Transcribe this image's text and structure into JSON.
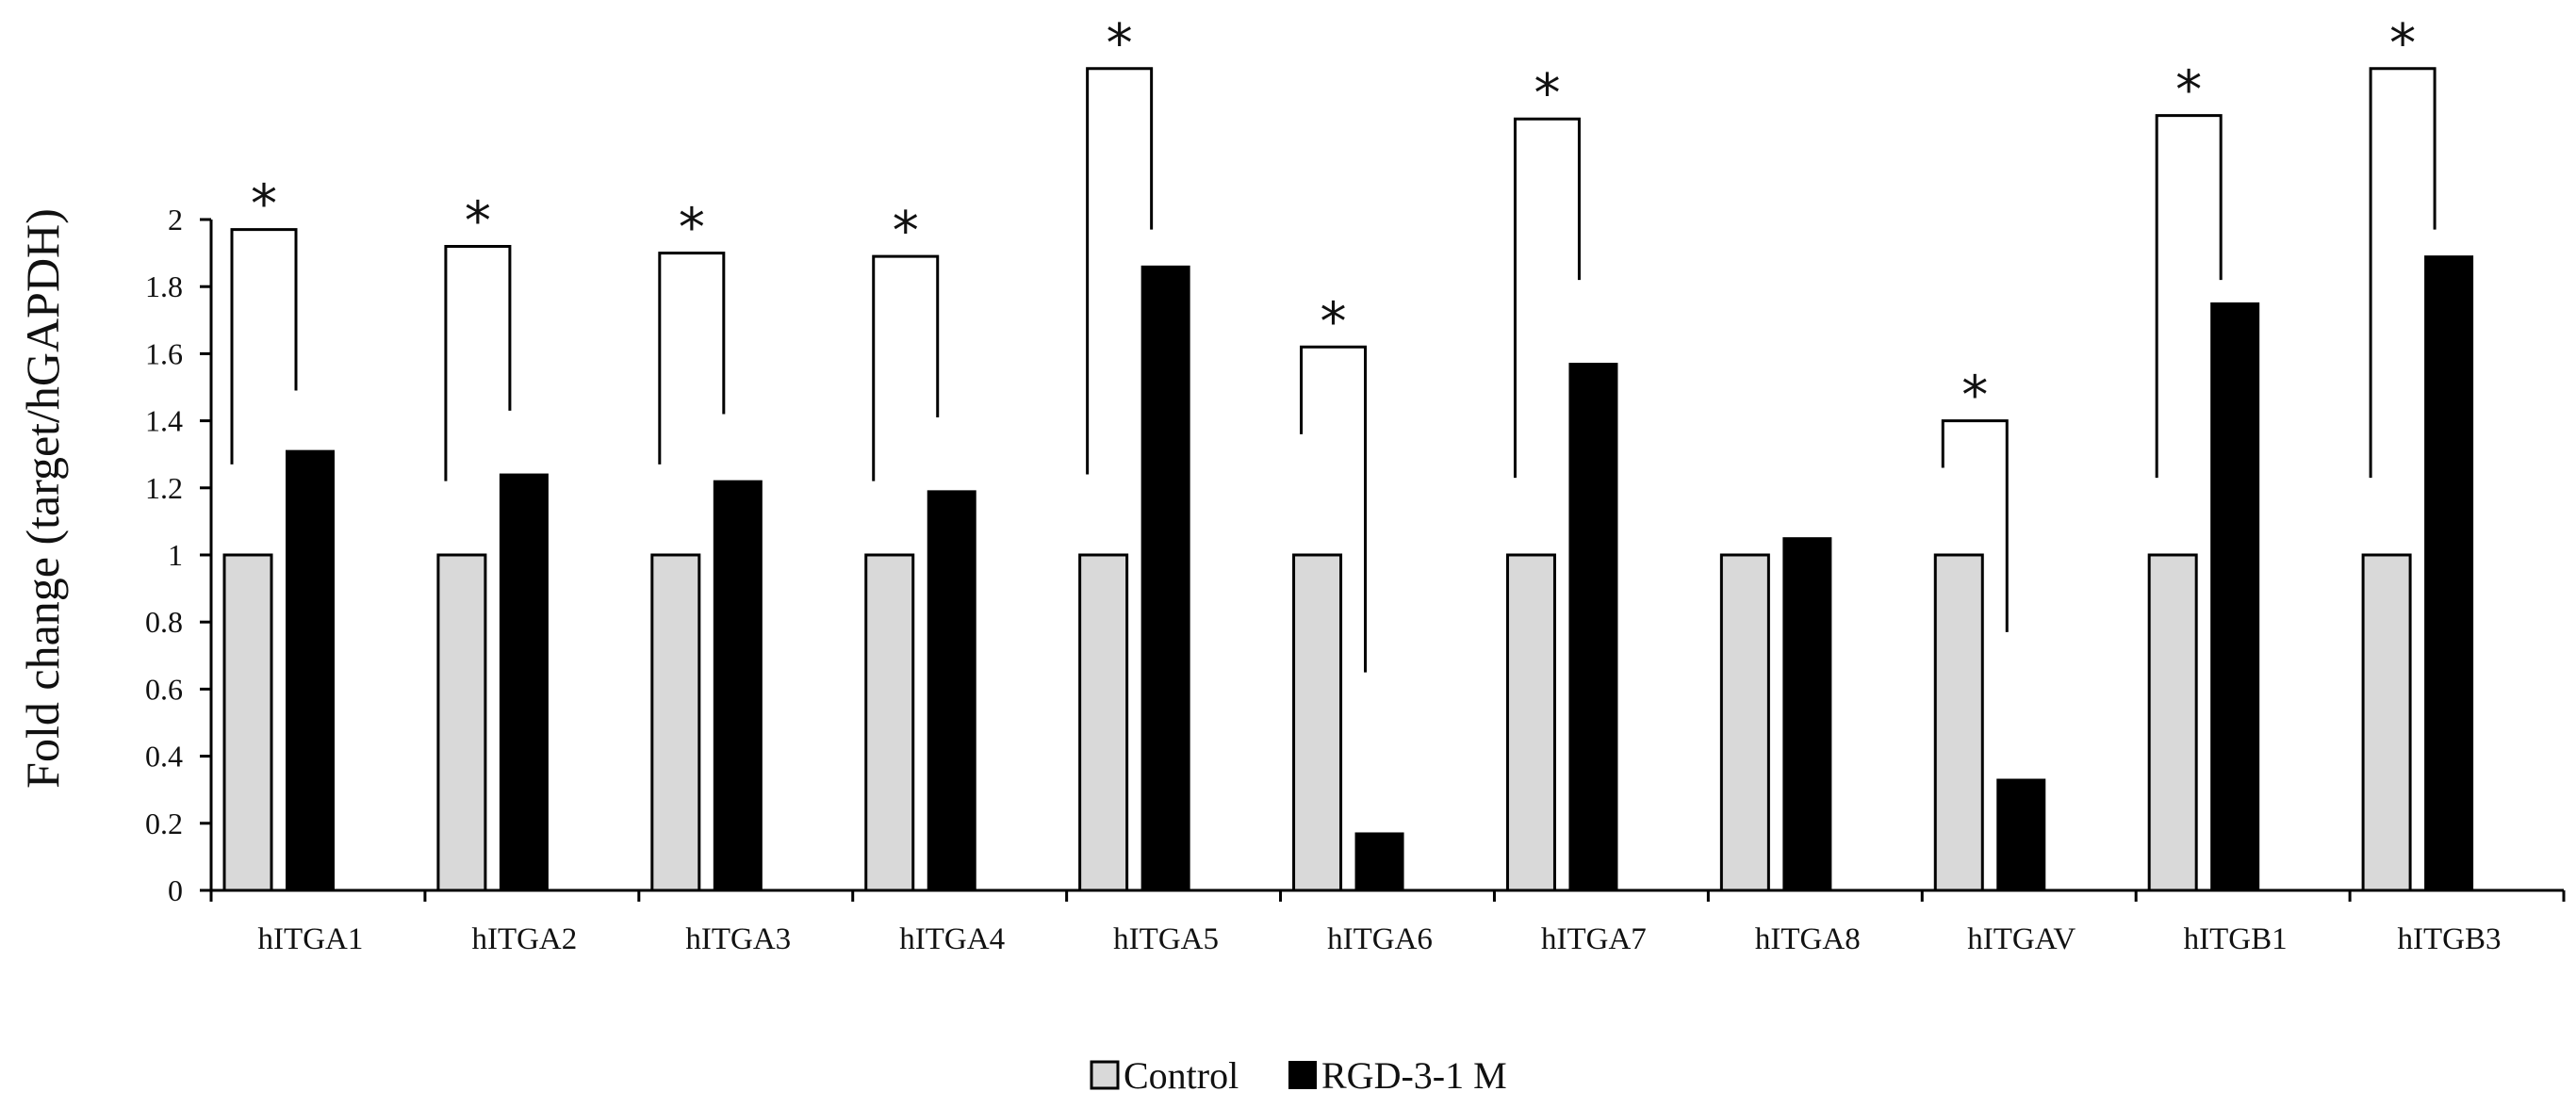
{
  "chart_data": {
    "type": "bar",
    "title": "",
    "xlabel": "",
    "ylabel": "Fold change (target/hGAPDH)",
    "ylim": [
      0,
      2
    ],
    "yticks": [
      0,
      0.2,
      0.4,
      0.6,
      0.8,
      1,
      1.2,
      1.4,
      1.6,
      1.8,
      2
    ],
    "ytick_labels": [
      "0",
      "0.2",
      "0.4",
      "0.6",
      "0.8",
      "1",
      "1.2",
      "1.4",
      "1.6",
      "1.8",
      "2"
    ],
    "grid": false,
    "legend_position": "bottom-center",
    "categories": [
      "hITGA1",
      "hITGA2",
      "hITGA3",
      "hITGA4",
      "hITGA5",
      "hITGA6",
      "hITGA7",
      "hITGA8",
      "hITGAV",
      "hITGB1",
      "hITGB3"
    ],
    "series": [
      {
        "name": "Control",
        "color": "#d9d9d9",
        "values": [
          1,
          1,
          1,
          1,
          1,
          1,
          1,
          1,
          1,
          1,
          1
        ]
      },
      {
        "name": "RGD-3-1 M",
        "color": "#000000",
        "values": [
          1.31,
          1.24,
          1.22,
          1.19,
          1.86,
          0.17,
          1.57,
          1.05,
          0.33,
          1.75,
          1.89
        ]
      }
    ],
    "significance": [
      {
        "category": "hITGA1",
        "symbol": "*",
        "bracket_y": 1.97,
        "left_end": 1.27,
        "right_end": 1.49
      },
      {
        "category": "hITGA2",
        "symbol": "*",
        "bracket_y": 1.92,
        "left_end": 1.22,
        "right_end": 1.43
      },
      {
        "category": "hITGA3",
        "symbol": "*",
        "bracket_y": 1.9,
        "left_end": 1.27,
        "right_end": 1.42
      },
      {
        "category": "hITGA4",
        "symbol": "*",
        "bracket_y": 1.89,
        "left_end": 1.22,
        "right_end": 1.41
      },
      {
        "category": "hITGA5",
        "symbol": "*",
        "bracket_y": 2.45,
        "left_end": 1.24,
        "right_end": 1.97
      },
      {
        "category": "hITGA6",
        "symbol": "*",
        "bracket_y": 1.62,
        "left_end": 1.36,
        "right_end": 0.65
      },
      {
        "category": "hITGA7",
        "symbol": "*",
        "bracket_y": 2.3,
        "left_end": 1.23,
        "right_end": 1.82
      },
      {
        "category": "hITGAV",
        "symbol": "*",
        "bracket_y": 1.4,
        "left_end": 1.26,
        "right_end": 0.77
      },
      {
        "category": "hITGB1",
        "symbol": "*",
        "bracket_y": 2.31,
        "left_end": 1.23,
        "right_end": 1.82
      },
      {
        "category": "hITGB3",
        "symbol": "*",
        "bracket_y": 2.45,
        "left_end": 1.23,
        "right_end": 1.97
      }
    ]
  }
}
